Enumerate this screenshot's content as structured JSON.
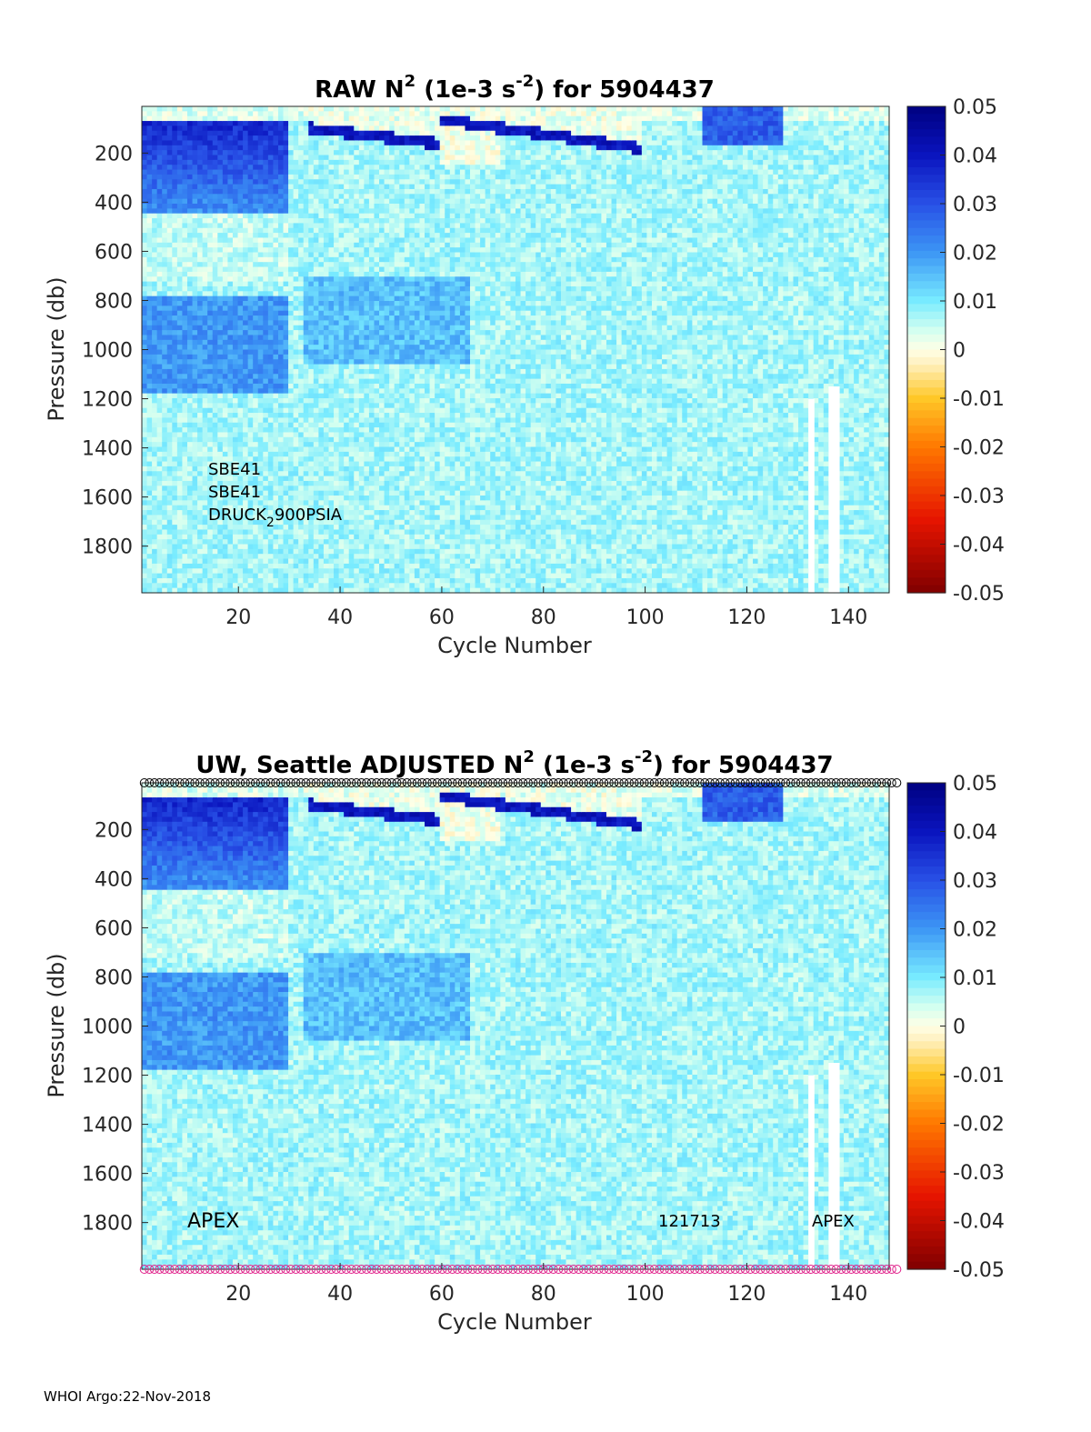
{
  "chart_data": [
    {
      "type": "heatmap",
      "title_prefix": "RAW N",
      "title_sup1": "2",
      "title_mid": " (1e-3 s",
      "title_sup2": "-2",
      "title_suffix": ") for 5904437",
      "xlabel": "Cycle Number",
      "ylabel": "Pressure (db)",
      "xlim": [
        1,
        148
      ],
      "ylim": [
        1990,
        10
      ],
      "x_ticks": [
        20,
        40,
        60,
        80,
        100,
        120,
        140
      ],
      "y_ticks": [
        200,
        400,
        600,
        800,
        1000,
        1200,
        1400,
        1600,
        1800
      ],
      "colorbar": {
        "min": -0.05,
        "max": 0.05,
        "ticks": [
          "0.05",
          "0.04",
          "0.03",
          "0.02",
          "0.01",
          "0",
          "-0.01",
          "-0.02",
          "-0.03",
          "-0.04",
          "-0.05"
        ]
      },
      "annotations": [
        "SBE41",
        "SBE41",
        "DRUCK",
        "2",
        "900PSIA"
      ]
    },
    {
      "type": "heatmap",
      "title_prefix": "UW, Seattle  ADJUSTED N",
      "title_sup1": "2",
      "title_mid": " (1e-3 s",
      "title_sup2": "-2",
      "title_suffix": ") for 5904437",
      "xlabel": "Cycle Number",
      "ylabel": "Pressure (db)",
      "xlim": [
        1,
        148
      ],
      "ylim": [
        1990,
        10
      ],
      "x_ticks": [
        20,
        40,
        60,
        80,
        100,
        120,
        140
      ],
      "y_ticks": [
        200,
        400,
        600,
        800,
        1000,
        1200,
        1400,
        1600,
        1800
      ],
      "colorbar": {
        "min": -0.05,
        "max": 0.05,
        "ticks": [
          "0.05",
          "0.04",
          "0.03",
          "0.02",
          "0.01",
          "0",
          "-0.01",
          "-0.02",
          "-0.03",
          "-0.04",
          "-0.05"
        ]
      },
      "annotations": [
        "APEX",
        "121713",
        "APEX"
      ],
      "qc_marker_rows": {
        "top_color": "#000000",
        "bottom_color": "#e0208a"
      }
    }
  ],
  "footer": "WHOI Argo:22-Nov-2018"
}
